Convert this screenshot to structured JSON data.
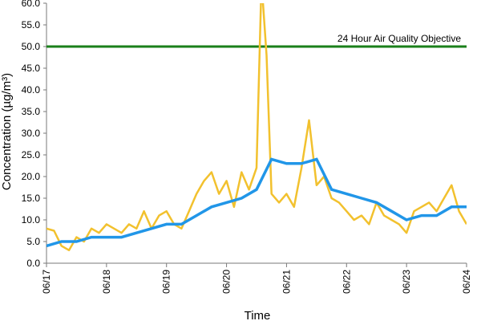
{
  "chart_data": {
    "type": "line",
    "title": "",
    "xlabel": "Time",
    "ylabel": "Concentration (µg/m³)",
    "ylim": [
      0,
      60
    ],
    "y_ticks": [
      "0.0",
      "5.0",
      "10.0",
      "15.0",
      "20.0",
      "25.0",
      "30.0",
      "35.0",
      "40.0",
      "45.0",
      "50.0",
      "55.0",
      "60.0"
    ],
    "x_range": [
      "06/17",
      "06/24"
    ],
    "x_ticks": [
      "06/17",
      "06/18",
      "06/19",
      "06/20",
      "06/21",
      "06/22",
      "06/23",
      "06/24"
    ],
    "grid": false,
    "legend": "none",
    "reference_line": {
      "label": "24 Hour Air Quality Objective",
      "value": 50,
      "color": "#1a7f1a"
    },
    "series": [
      {
        "color": "#f2c12e",
        "x": [
          "06/17 00:00",
          "06/17 03:00",
          "06/17 06:00",
          "06/17 09:00",
          "06/17 12:00",
          "06/17 15:00",
          "06/17 18:00",
          "06/17 21:00",
          "06/18 00:00",
          "06/18 03:00",
          "06/18 06:00",
          "06/18 09:00",
          "06/18 12:00",
          "06/18 15:00",
          "06/18 18:00",
          "06/18 21:00",
          "06/19 00:00",
          "06/19 03:00",
          "06/19 06:00",
          "06/19 09:00",
          "06/19 12:00",
          "06/19 15:00",
          "06/19 18:00",
          "06/19 21:00",
          "06/20 00:00",
          "06/20 03:00",
          "06/20 06:00",
          "06/20 09:00",
          "06/20 12:00",
          "06/20 14:00",
          "06/20 16:00",
          "06/20 18:00",
          "06/20 21:00",
          "06/21 00:00",
          "06/21 03:00",
          "06/21 06:00",
          "06/21 09:00",
          "06/21 12:00",
          "06/21 15:00",
          "06/21 18:00",
          "06/21 21:00",
          "06/22 00:00",
          "06/22 03:00",
          "06/22 06:00",
          "06/22 09:00",
          "06/22 12:00",
          "06/22 15:00",
          "06/22 18:00",
          "06/22 21:00",
          "06/23 00:00",
          "06/23 03:00",
          "06/23 06:00",
          "06/23 09:00",
          "06/23 12:00",
          "06/23 15:00",
          "06/23 18:00",
          "06/23 21:00",
          "06/24 00:00"
        ],
        "values": [
          8,
          7.5,
          4,
          3,
          6,
          5,
          8,
          7,
          9,
          8,
          7,
          9,
          8,
          12,
          8,
          11,
          12,
          9,
          8,
          12,
          16,
          19,
          21,
          16,
          19,
          13,
          21,
          17,
          22,
          65,
          48,
          16,
          14,
          16,
          13,
          22,
          33,
          18,
          20,
          15,
          14,
          12,
          10,
          11,
          9,
          14,
          11,
          10,
          9,
          7,
          12,
          13,
          14,
          12,
          15,
          18,
          12,
          9
        ],
        "note": ""
      },
      {
        "color": "#2196e8",
        "x": [
          "06/17 00:00",
          "06/17 06:00",
          "06/17 12:00",
          "06/17 18:00",
          "06/18 00:00",
          "06/18 06:00",
          "06/18 12:00",
          "06/18 18:00",
          "06/19 00:00",
          "06/19 06:00",
          "06/19 12:00",
          "06/19 18:00",
          "06/20 00:00",
          "06/20 06:00",
          "06/20 12:00",
          "06/20 18:00",
          "06/21 00:00",
          "06/21 06:00",
          "06/21 12:00",
          "06/21 18:00",
          "06/22 00:00",
          "06/22 06:00",
          "06/22 12:00",
          "06/22 18:00",
          "06/23 00:00",
          "06/23 06:00",
          "06/23 12:00",
          "06/23 18:00",
          "06/24 00:00"
        ],
        "values": [
          4,
          5,
          5,
          6,
          6,
          6,
          7,
          8,
          9,
          9,
          11,
          13,
          14,
          15,
          17,
          24,
          23,
          23,
          24,
          17,
          16,
          15,
          14,
          12,
          10,
          11,
          11,
          13,
          13
        ]
      }
    ]
  }
}
